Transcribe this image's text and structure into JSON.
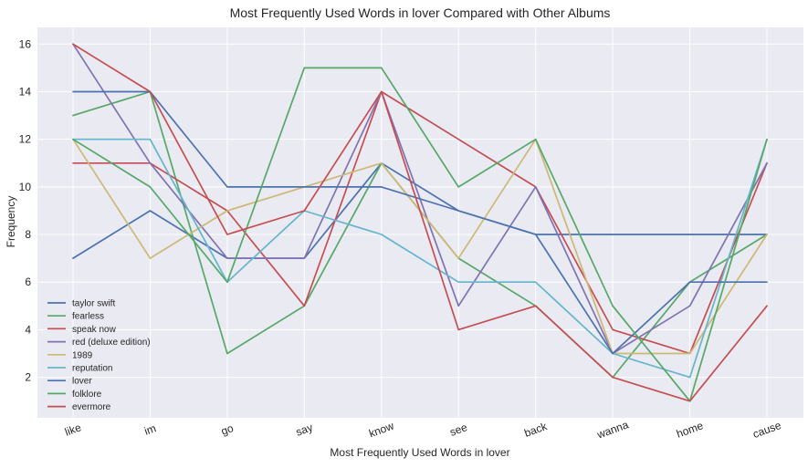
{
  "chart_data": {
    "type": "line",
    "title": "Most Frequently Used Words in lover Compared with Other Albums",
    "xlabel": "Most Frequently Used Words in lover",
    "ylabel": "Frequency",
    "categories": [
      "like",
      "im",
      "go",
      "say",
      "know",
      "see",
      "back",
      "wanna",
      "home",
      "cause"
    ],
    "ylim": [
      0.3,
      16.7
    ],
    "yticks": [
      2,
      4,
      6,
      8,
      10,
      12,
      14,
      16
    ],
    "grid": true,
    "legend_position": "lower-left",
    "style": "seaborn",
    "series": [
      {
        "name": "taylor swift",
        "color": "#4C72B0",
        "values": [
          7,
          9,
          7,
          7,
          11,
          9,
          8,
          8,
          8,
          8
        ]
      },
      {
        "name": "fearless",
        "color": "#55A868",
        "values": [
          13,
          14,
          3,
          5,
          11,
          7,
          5,
          2,
          6,
          8
        ]
      },
      {
        "name": "speak now",
        "color": "#C44E52",
        "values": [
          11,
          11,
          9,
          5,
          14,
          12,
          10,
          4,
          3,
          11
        ]
      },
      {
        "name": "red (deluxe edition)",
        "color": "#8172B2",
        "values": [
          16,
          11,
          7,
          7,
          14,
          5,
          10,
          3,
          5,
          11
        ]
      },
      {
        "name": "1989",
        "color": "#CCB974",
        "values": [
          12,
          7,
          9,
          10,
          11,
          7,
          12,
          3,
          3,
          8
        ]
      },
      {
        "name": "reputation",
        "color": "#64B5CD",
        "values": [
          12,
          12,
          6,
          9,
          8,
          6,
          6,
          3,
          2,
          12
        ]
      },
      {
        "name": "lover",
        "color": "#4C72B0",
        "values": [
          14,
          14,
          10,
          10,
          10,
          9,
          8,
          3,
          6,
          6
        ]
      },
      {
        "name": "folklore",
        "color": "#55A868",
        "values": [
          12,
          10,
          6,
          15,
          15,
          10,
          12,
          5,
          1,
          12
        ]
      },
      {
        "name": "evermore",
        "color": "#C44E52",
        "values": [
          16,
          14,
          8,
          9,
          14,
          4,
          5,
          2,
          1,
          5
        ]
      }
    ]
  }
}
